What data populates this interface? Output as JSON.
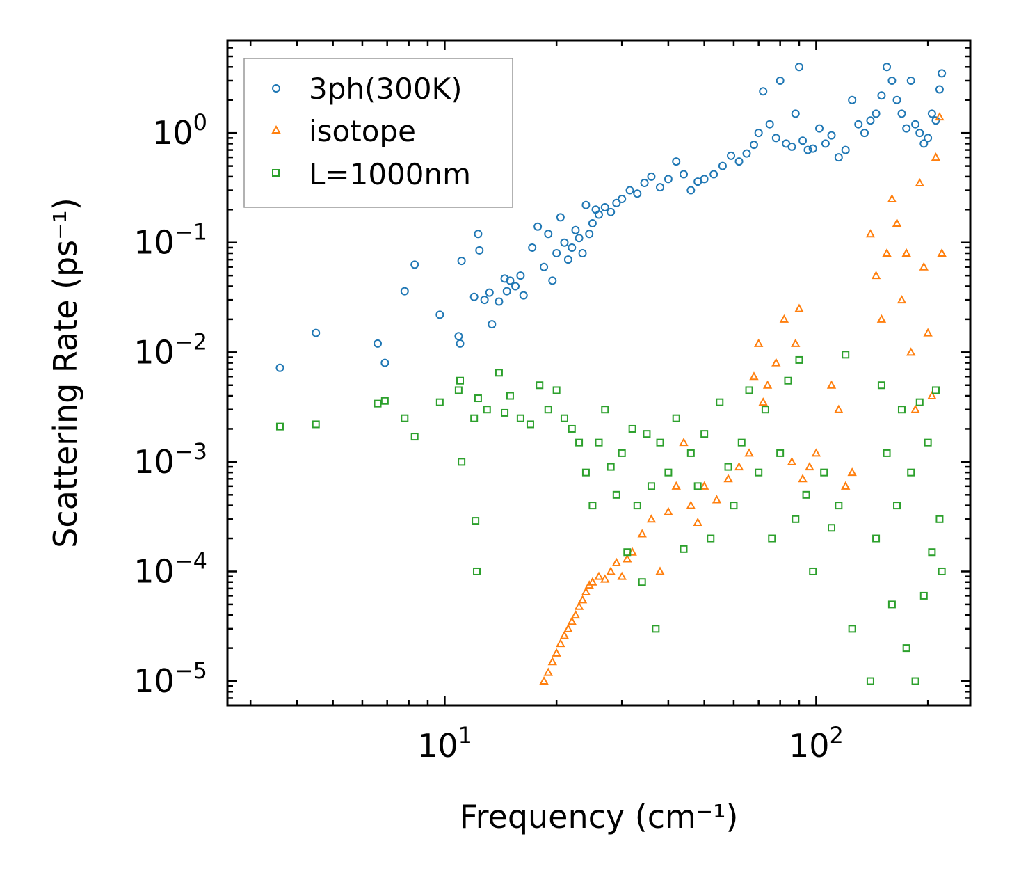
{
  "chart_data": {
    "type": "scatter",
    "title": "",
    "xlabel": "Frequency (cm⁻¹)",
    "ylabel": "Scattering Rate (ps⁻¹)",
    "x_scale": "log",
    "y_scale": "log",
    "xlim": [
      2.6,
      260
    ],
    "ylim": [
      6e-06,
      7.0
    ],
    "x_ticks": [
      {
        "base": "10",
        "exp": "1",
        "value": 10
      },
      {
        "base": "10",
        "exp": "2",
        "value": 100
      }
    ],
    "y_ticks": [
      {
        "base": "10",
        "exp": "0",
        "value": 1
      },
      {
        "base": "10",
        "exp": "−1",
        "value": 0.1
      },
      {
        "base": "10",
        "exp": "−2",
        "value": 0.01
      },
      {
        "base": "10",
        "exp": "−3",
        "value": 0.001
      },
      {
        "base": "10",
        "exp": "−4",
        "value": 0.0001
      },
      {
        "base": "10",
        "exp": "−5",
        "value": 1e-05
      }
    ],
    "legend_position": "top-left",
    "series": [
      {
        "name": "3ph(300K)",
        "marker": "circle",
        "color": "#1f77b4",
        "x": [
          3.6,
          4.5,
          6.6,
          6.9,
          7.8,
          8.3,
          9.7,
          10.9,
          11.0,
          11.1,
          12.0,
          12.3,
          12.4,
          12.8,
          13.2,
          13.4,
          14.0,
          14.5,
          14.7,
          15.0,
          15.5,
          16.0,
          16.3,
          17.2,
          17.8,
          18.5,
          19.0,
          19.5,
          20.0,
          20.5,
          21.0,
          21.5,
          22.0,
          22.5,
          23.0,
          23.5,
          24.0,
          24.5,
          25.0,
          25.5,
          26.0,
          27.0,
          28.0,
          29.0,
          30.0,
          31.5,
          33.0,
          34.5,
          36.0,
          38.0,
          40.0,
          42.0,
          44.0,
          46.0,
          48.0,
          50.0,
          53.0,
          56.0,
          59.0,
          62.0,
          65.0,
          68.0,
          70.0,
          72.0,
          75.0,
          78.0,
          80.0,
          83.0,
          86.0,
          88.0,
          90.0,
          92.0,
          95.0,
          98.0,
          102.0,
          106.0,
          110.0,
          115.0,
          120.0,
          125.0,
          130.0,
          135.0,
          140.0,
          145.0,
          150.0,
          155.0,
          160.0,
          165.0,
          170.0,
          175.0,
          180.0,
          185.0,
          190.0,
          195.0,
          200.0,
          205.0,
          210.0,
          215.0,
          218.0
        ],
        "y": [
          0.0072,
          0.015,
          0.012,
          0.008,
          0.036,
          0.063,
          0.022,
          0.014,
          0.012,
          0.068,
          0.032,
          0.12,
          0.085,
          0.03,
          0.035,
          0.018,
          0.029,
          0.047,
          0.036,
          0.045,
          0.04,
          0.05,
          0.033,
          0.09,
          0.14,
          0.06,
          0.12,
          0.045,
          0.08,
          0.17,
          0.1,
          0.07,
          0.09,
          0.13,
          0.11,
          0.08,
          0.22,
          0.12,
          0.15,
          0.2,
          0.18,
          0.21,
          0.19,
          0.23,
          0.25,
          0.3,
          0.28,
          0.35,
          0.4,
          0.32,
          0.38,
          0.55,
          0.42,
          0.3,
          0.36,
          0.38,
          0.42,
          0.5,
          0.62,
          0.55,
          0.65,
          0.78,
          1.0,
          2.4,
          1.2,
          0.9,
          3.0,
          0.8,
          0.75,
          1.5,
          4.0,
          0.85,
          0.7,
          0.72,
          1.1,
          0.8,
          0.95,
          0.6,
          0.7,
          2.0,
          1.2,
          1.0,
          1.3,
          1.5,
          2.2,
          4.0,
          3.0,
          2.0,
          1.5,
          1.1,
          3.0,
          1.2,
          1.0,
          0.8,
          0.9,
          1.5,
          1.3,
          2.5,
          3.5
        ]
      },
      {
        "name": "isotope",
        "marker": "triangle",
        "color": "#ff7f0e",
        "x": [
          18.5,
          19.0,
          19.5,
          20.0,
          20.5,
          21.0,
          21.5,
          22.0,
          22.5,
          23.0,
          23.5,
          24.0,
          24.5,
          25.0,
          26.0,
          27.0,
          28.0,
          29.0,
          30.0,
          31.0,
          32.0,
          34.0,
          36.0,
          38.0,
          40.0,
          42.0,
          44.0,
          46.0,
          48.0,
          50.0,
          54.0,
          58.0,
          62.0,
          66.0,
          68.0,
          70.0,
          72.0,
          74.0,
          78.0,
          82.0,
          86.0,
          88.0,
          90.0,
          92.0,
          96.0,
          100.0,
          110.0,
          115.0,
          120.0,
          125.0,
          140.0,
          145.0,
          150.0,
          155.0,
          160.0,
          165.0,
          170.0,
          175.0,
          180.0,
          185.0,
          190.0,
          195.0,
          200.0,
          205.0,
          210.0,
          215.0,
          218.0
        ],
        "y": [
          1e-05,
          1.2e-05,
          1.5e-05,
          1.8e-05,
          2.2e-05,
          2.6e-05,
          3e-05,
          3.5e-05,
          4e-05,
          4.8e-05,
          5.5e-05,
          6.5e-05,
          7.5e-05,
          8e-05,
          9e-05,
          8.5e-05,
          0.0001,
          0.00012,
          9e-05,
          0.00013,
          0.00015,
          0.00022,
          0.0003,
          0.0001,
          0.00035,
          0.0006,
          0.0015,
          0.0004,
          0.00028,
          0.0006,
          0.00045,
          0.0007,
          0.0009,
          0.0012,
          0.006,
          0.012,
          0.0035,
          0.005,
          0.008,
          0.02,
          0.001,
          0.012,
          0.025,
          0.0007,
          0.0009,
          0.0012,
          0.005,
          0.003,
          0.0006,
          0.0008,
          0.12,
          0.05,
          0.02,
          0.08,
          0.25,
          0.15,
          0.03,
          0.08,
          0.01,
          0.003,
          0.35,
          0.06,
          0.015,
          0.004,
          0.6,
          1.4,
          0.08
        ]
      },
      {
        "name": "L=1000nm",
        "marker": "square",
        "color": "#2ca02c",
        "x": [
          3.6,
          4.5,
          6.6,
          6.9,
          7.8,
          8.3,
          9.7,
          10.9,
          11.0,
          11.1,
          12.0,
          12.1,
          12.2,
          12.3,
          13.0,
          14.0,
          14.5,
          15.0,
          16.0,
          17.0,
          18.0,
          19.0,
          20.0,
          21.0,
          22.0,
          23.0,
          24.0,
          25.0,
          26.0,
          27.0,
          28.0,
          29.0,
          30.0,
          31.0,
          32.0,
          33.0,
          34.0,
          35.0,
          36.0,
          37.0,
          38.0,
          40.0,
          42.0,
          44.0,
          46.0,
          48.0,
          50.0,
          52.0,
          55.0,
          58.0,
          60.0,
          63.0,
          66.0,
          70.0,
          73.0,
          76.0,
          80.0,
          84.0,
          88.0,
          90.0,
          94.0,
          98.0,
          105.0,
          110.0,
          115.0,
          120.0,
          125.0,
          140.0,
          145.0,
          150.0,
          155.0,
          160.0,
          165.0,
          170.0,
          175.0,
          180.0,
          185.0,
          190.0,
          195.0,
          200.0,
          205.0,
          210.0,
          215.0,
          218.0
        ],
        "y": [
          0.0021,
          0.0022,
          0.0034,
          0.0036,
          0.0025,
          0.0017,
          0.0035,
          0.0045,
          0.0055,
          0.001,
          0.0025,
          0.00029,
          0.0001,
          0.0038,
          0.003,
          0.0065,
          0.0028,
          0.004,
          0.0025,
          0.0022,
          0.005,
          0.003,
          0.0045,
          0.0025,
          0.002,
          0.0015,
          0.0008,
          0.0004,
          0.0015,
          0.003,
          0.0009,
          0.0005,
          0.0012,
          0.00015,
          0.002,
          0.0004,
          8e-05,
          0.0018,
          0.0006,
          3e-05,
          0.0015,
          0.0008,
          0.0025,
          0.00016,
          0.0012,
          0.0006,
          0.0018,
          0.0002,
          0.0035,
          0.0009,
          0.0004,
          0.0015,
          0.0045,
          0.0008,
          0.003,
          0.0002,
          0.0012,
          0.0055,
          0.0003,
          0.0085,
          0.0005,
          0.0001,
          0.0008,
          0.00025,
          0.0004,
          0.0095,
          3e-05,
          1e-05,
          0.0002,
          0.005,
          0.0012,
          5e-05,
          0.0004,
          0.003,
          2e-05,
          0.0008,
          1e-05,
          0.0035,
          6e-05,
          0.0015,
          0.00015,
          0.0045,
          0.0003,
          0.0001
        ]
      }
    ]
  }
}
